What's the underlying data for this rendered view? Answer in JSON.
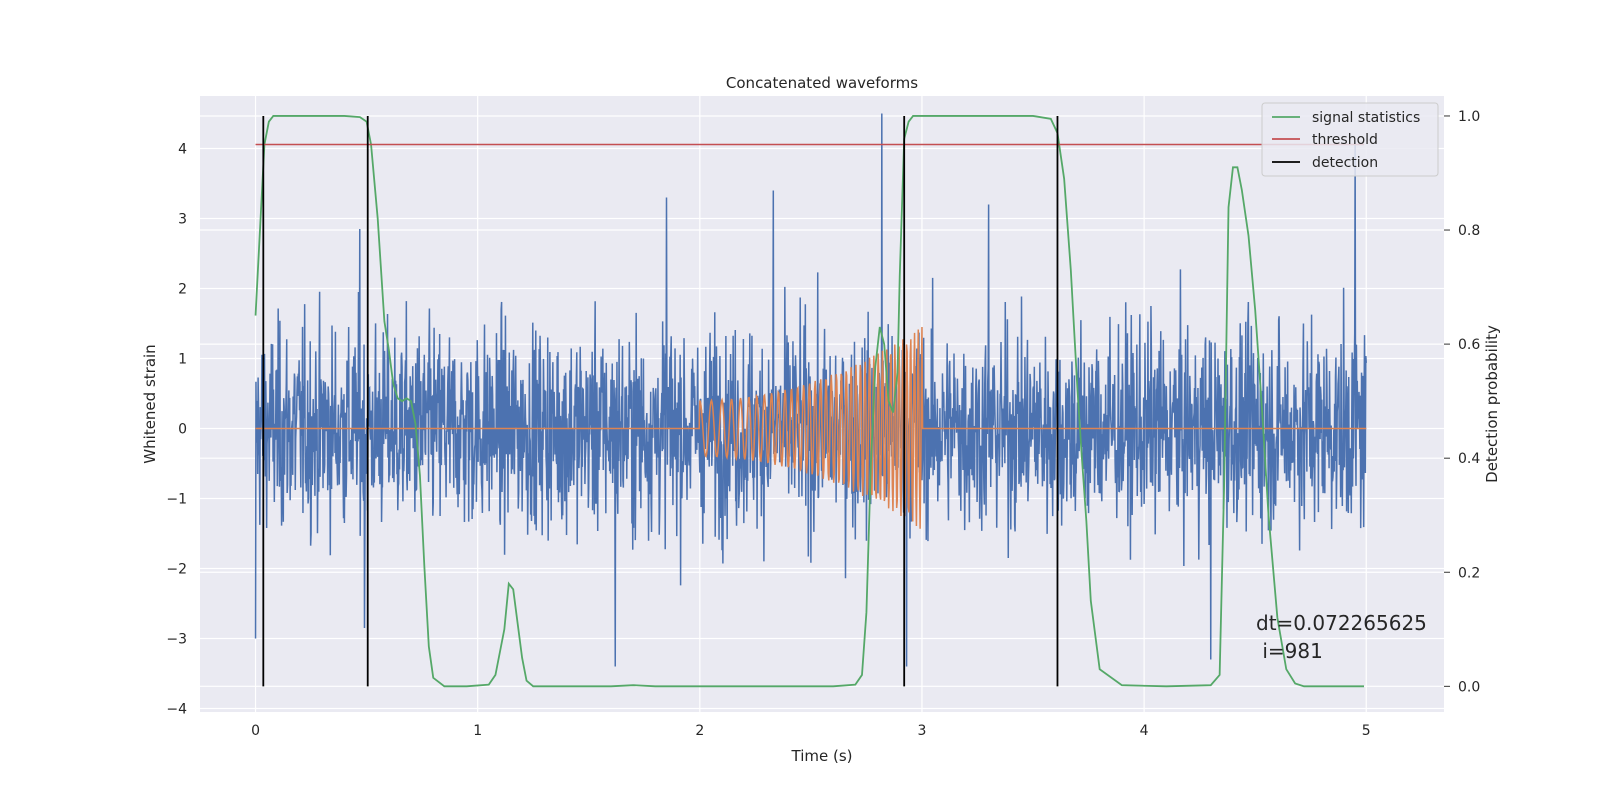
{
  "chart_data": {
    "type": "line",
    "title": "Concatenated waveforms",
    "xlabel": "Time (s)",
    "ylabel": "Whitened strain",
    "y2label": "Detection probability",
    "xlim": [
      -0.25,
      5.35
    ],
    "ylim": [
      -4.05,
      4.75
    ],
    "y2lim": [
      -0.045,
      1.035
    ],
    "xticks": [
      0,
      1,
      2,
      3,
      4,
      5
    ],
    "yticks": [
      -4,
      -3,
      -2,
      -1,
      0,
      1,
      2,
      3,
      4
    ],
    "yticklabels": [
      "−4",
      "−3",
      "−2",
      "−1",
      "0",
      "1",
      "2",
      "3",
      "4"
    ],
    "y2ticks": [
      0.0,
      0.2,
      0.4,
      0.6,
      0.8,
      1.0
    ],
    "y2ticklabels": [
      "0.0",
      "0.2",
      "0.4",
      "0.6",
      "0.8",
      "1.0"
    ],
    "grid": true,
    "legend_position": "top-right",
    "colors": {
      "background": "#eaeaf2",
      "grid": "#ffffff",
      "strain": "#4c72b0",
      "injection": "#dd8452",
      "signal_statistics": "#55a868",
      "threshold": "#c44e52",
      "detection": "#000000"
    },
    "series": [
      {
        "name": "signal statistics",
        "axis": "right",
        "x": [
          0.0,
          0.02,
          0.04,
          0.06,
          0.08,
          0.1,
          0.15,
          0.2,
          0.3,
          0.4,
          0.47,
          0.5,
          0.52,
          0.55,
          0.58,
          0.6,
          0.62,
          0.64,
          0.66,
          0.68,
          0.7,
          0.72,
          0.74,
          0.76,
          0.78,
          0.8,
          0.85,
          0.95,
          1.05,
          1.08,
          1.1,
          1.12,
          1.14,
          1.16,
          1.18,
          1.2,
          1.22,
          1.25,
          1.4,
          1.6,
          1.7,
          1.8,
          2.0,
          2.2,
          2.4,
          2.6,
          2.7,
          2.73,
          2.75,
          2.77,
          2.79,
          2.81,
          2.83,
          2.85,
          2.87,
          2.89,
          2.9,
          2.92,
          2.94,
          2.96,
          3.0,
          3.1,
          3.2,
          3.4,
          3.5,
          3.58,
          3.61,
          3.64,
          3.67,
          3.7,
          3.72,
          3.74,
          3.76,
          3.8,
          3.9,
          4.1,
          4.3,
          4.34,
          4.36,
          4.38,
          4.4,
          4.42,
          4.44,
          4.47,
          4.5,
          4.53,
          4.56,
          4.6,
          4.64,
          4.68,
          4.72,
          4.76,
          4.8,
          4.9,
          4.99
        ],
        "values": [
          0.65,
          0.8,
          0.95,
          0.99,
          1.0,
          1.0,
          1.0,
          1.0,
          1.0,
          1.0,
          0.998,
          0.99,
          0.95,
          0.82,
          0.64,
          0.59,
          0.53,
          0.505,
          0.5,
          0.505,
          0.5,
          0.46,
          0.37,
          0.21,
          0.07,
          0.015,
          0.0,
          0.0,
          0.003,
          0.02,
          0.06,
          0.1,
          0.18,
          0.17,
          0.11,
          0.05,
          0.01,
          0.0,
          0.0,
          0.0,
          0.002,
          0.0,
          0.0,
          0.0,
          0.0,
          0.0,
          0.003,
          0.02,
          0.13,
          0.39,
          0.56,
          0.63,
          0.6,
          0.5,
          0.48,
          0.55,
          0.72,
          0.96,
          0.99,
          1.0,
          1.0,
          1.0,
          1.0,
          1.0,
          1.0,
          0.995,
          0.97,
          0.89,
          0.73,
          0.52,
          0.4,
          0.29,
          0.15,
          0.03,
          0.002,
          0.0,
          0.002,
          0.02,
          0.35,
          0.84,
          0.91,
          0.91,
          0.87,
          0.79,
          0.66,
          0.49,
          0.3,
          0.12,
          0.03,
          0.005,
          0.0,
          0.0,
          0.0,
          0.0,
          0.0
        ]
      },
      {
        "name": "threshold",
        "axis": "right",
        "x": [
          0.0,
          4.99
        ],
        "values": [
          0.95,
          0.95
        ]
      },
      {
        "name": "detection",
        "axis": "right",
        "type": "vlines",
        "x": [
          0.035,
          0.505,
          2.92,
          3.61
        ],
        "ymin": 0.0,
        "ymax": 1.0
      },
      {
        "name": "",
        "axis": "left",
        "description_none": true,
        "type": "noise",
        "x_range": [
          0.0,
          5.0
        ],
        "typical_amplitude": 1.0,
        "extreme_peaks": [
          {
            "x": 0.0,
            "y": -3.0
          },
          {
            "x": 0.47,
            "y": 2.85
          },
          {
            "x": 0.49,
            "y": -2.85
          },
          {
            "x": 1.62,
            "y": -3.4
          },
          {
            "x": 1.85,
            "y": 3.3
          },
          {
            "x": 2.33,
            "y": 3.4
          },
          {
            "x": 2.82,
            "y": 4.5
          },
          {
            "x": 2.93,
            "y": -3.4
          },
          {
            "x": 3.3,
            "y": 3.2
          },
          {
            "x": 4.3,
            "y": -3.3
          },
          {
            "x": 4.95,
            "y": 4.1
          }
        ]
      },
      {
        "name": "",
        "axis": "left",
        "type": "chirp",
        "x_range": [
          2.0,
          3.0
        ],
        "amplitude_start": 0.4,
        "amplitude_end": 1.45,
        "freq_start": 18,
        "freq_end": 60
      }
    ],
    "annotation": {
      "line1": "dt=0.072265625",
      "line2": " i=981"
    }
  }
}
